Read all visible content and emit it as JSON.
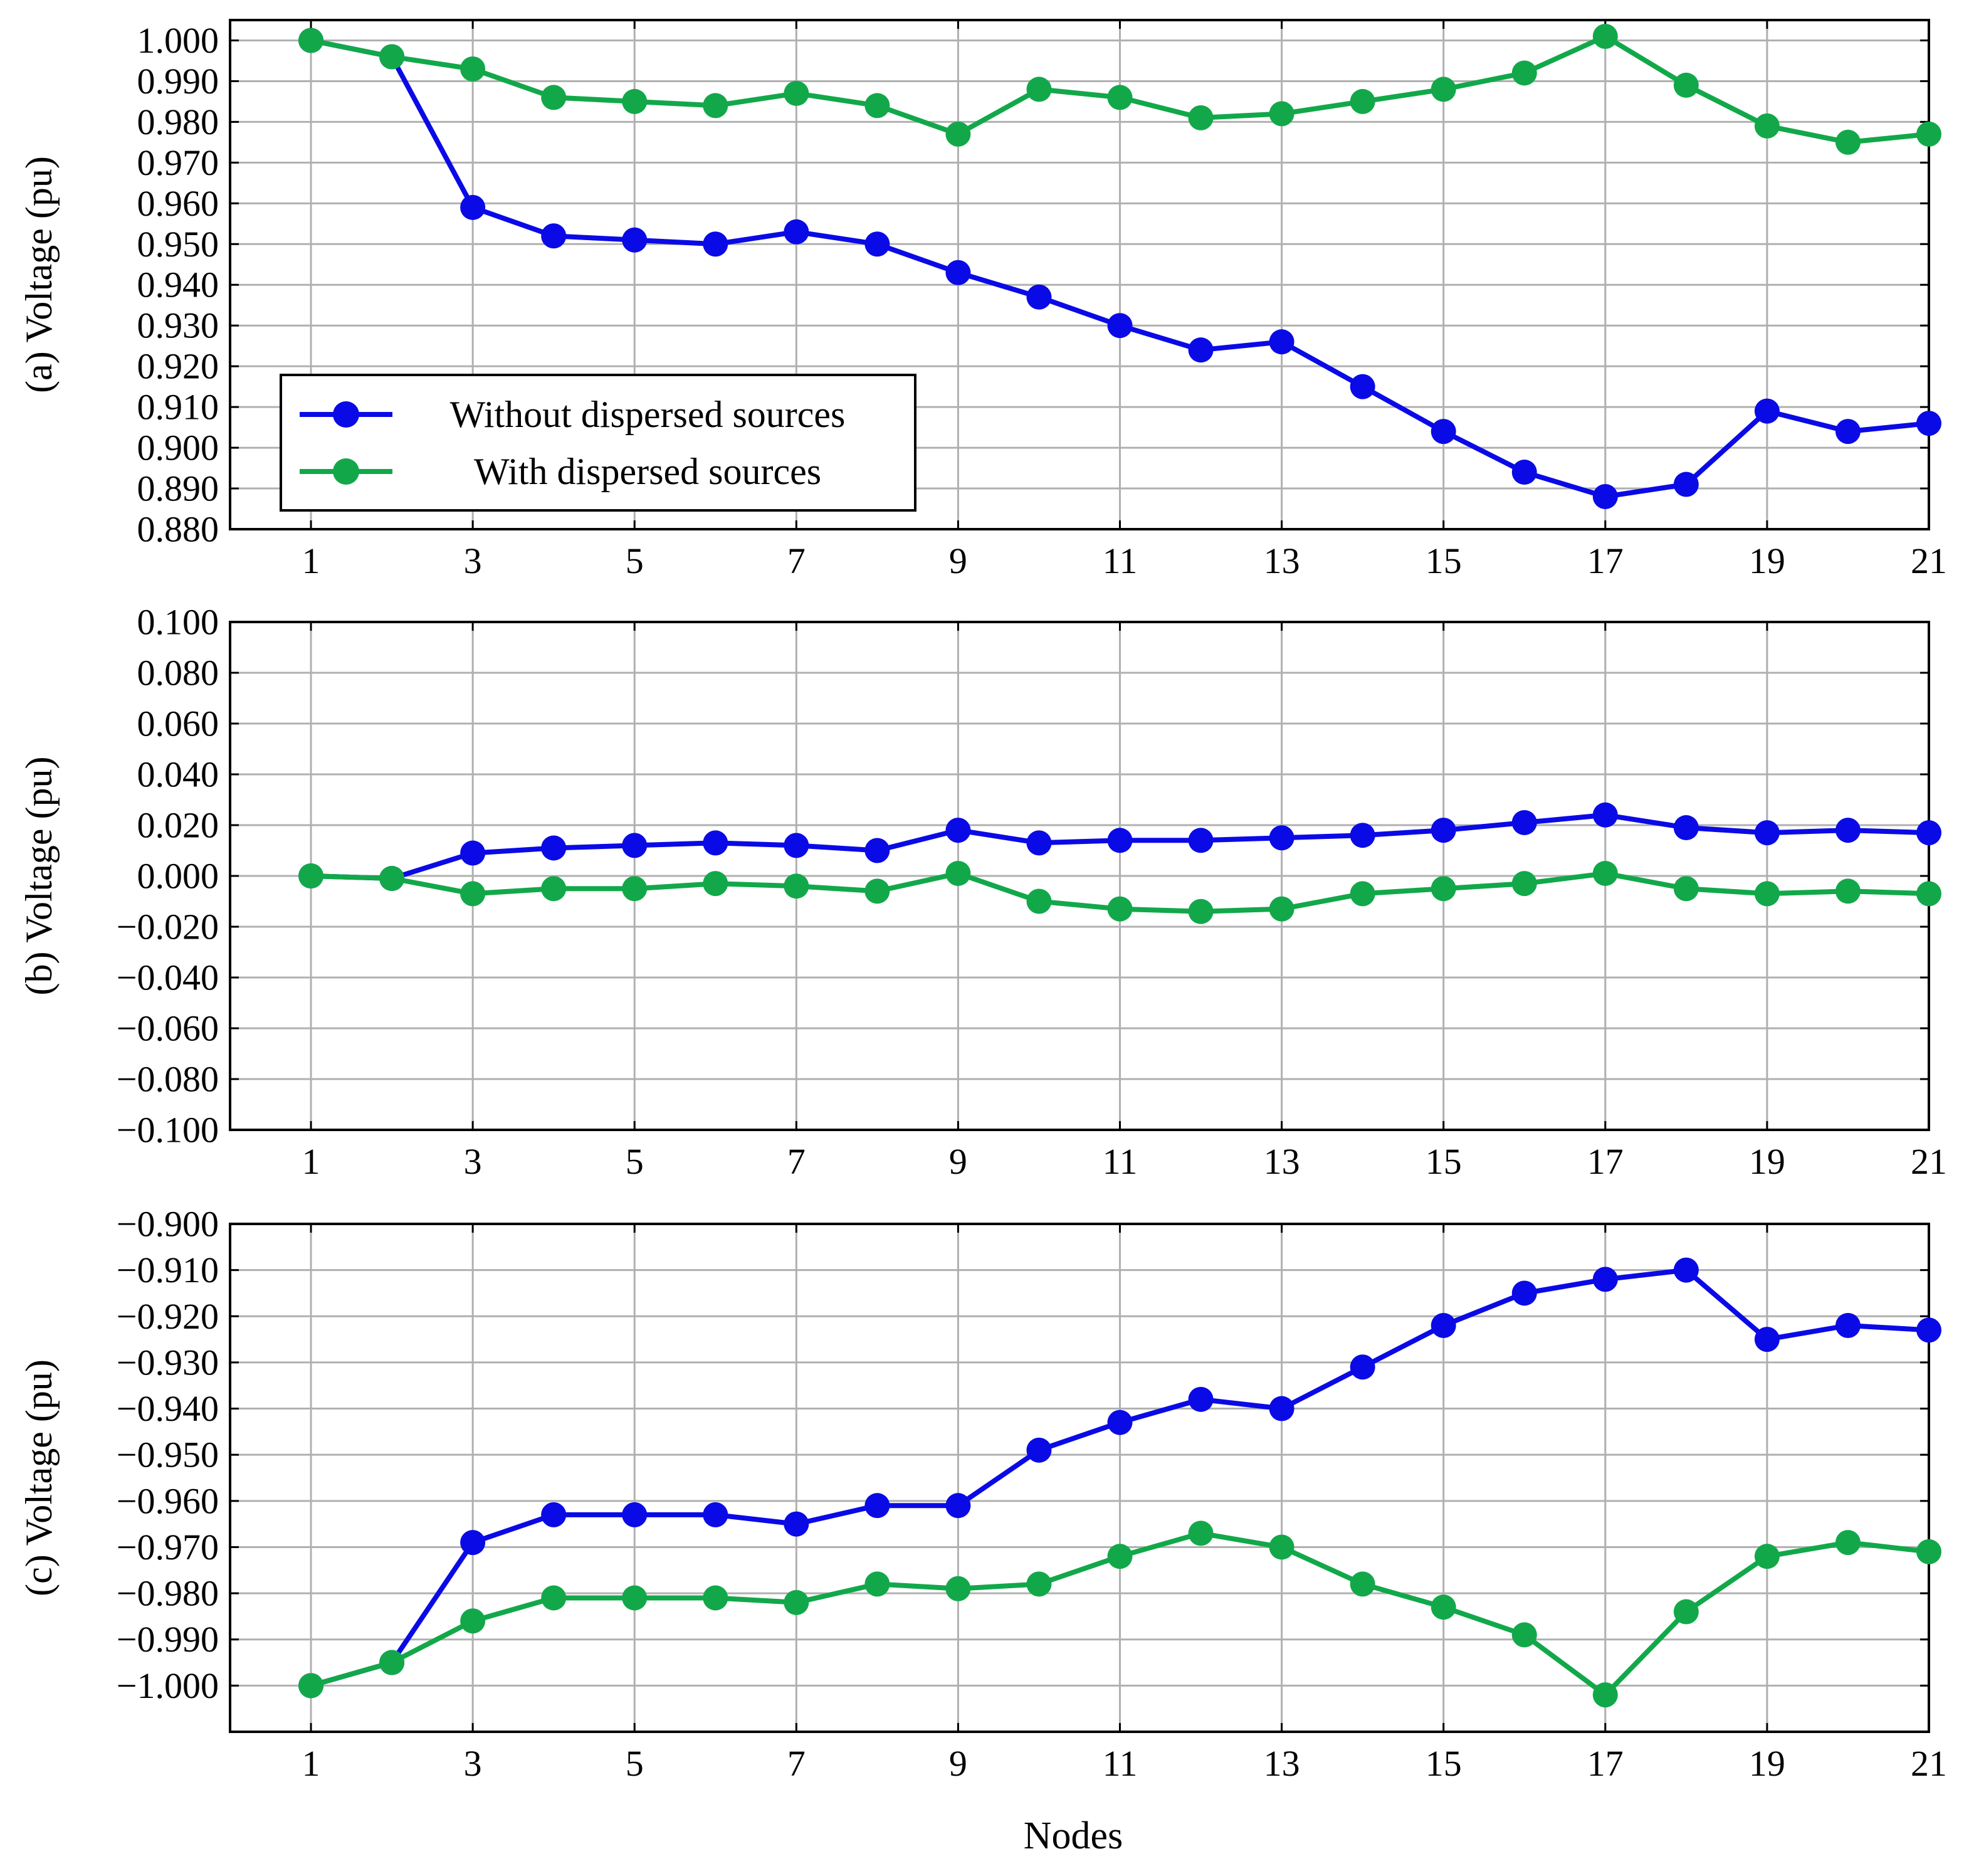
{
  "figure": {
    "xlabel": "Nodes"
  },
  "legend": {
    "entries": [
      "Without dispersed sources",
      "With dispersed sources"
    ],
    "placement": "lower-left of panel (a)"
  },
  "colors": {
    "without": "#0a0ae6",
    "with": "#12a84a",
    "grid": "#b0b0b0"
  },
  "chart_data": [
    {
      "type": "line",
      "panel": "a",
      "ylabel": "(a) Voltage (pu)",
      "xlabel": "",
      "x": [
        1,
        2,
        3,
        4,
        5,
        6,
        7,
        8,
        9,
        10,
        11,
        12,
        13,
        14,
        15,
        16,
        17,
        18,
        19,
        20,
        21
      ],
      "xlim": [
        0,
        21
      ],
      "xticks": [
        1,
        3,
        5,
        7,
        9,
        11,
        13,
        15,
        17,
        19,
        21
      ],
      "xtick_labels": [
        "1",
        "3",
        "5",
        "7",
        "9",
        "11",
        "13",
        "15",
        "17",
        "19",
        "21"
      ],
      "ylim": [
        0.88,
        1.005
      ],
      "yticks": [
        0.88,
        0.89,
        0.9,
        0.91,
        0.92,
        0.93,
        0.94,
        0.95,
        0.96,
        0.97,
        0.98,
        0.99,
        1.0
      ],
      "ytick_labels": [
        "0.880",
        "0.890",
        "0.900",
        "0.910",
        "0.920",
        "0.930",
        "0.940",
        "0.950",
        "0.960",
        "0.970",
        "0.980",
        "0.990",
        "1.000"
      ],
      "grid": true,
      "legend": true,
      "series": [
        {
          "name": "Without dispersed sources",
          "values": [
            1.0,
            0.996,
            0.959,
            0.952,
            0.951,
            0.95,
            0.953,
            0.95,
            0.943,
            0.937,
            0.93,
            0.924,
            0.926,
            0.915,
            0.904,
            0.894,
            0.888,
            0.891,
            0.909,
            0.904,
            0.906
          ]
        },
        {
          "name": "With dispersed sources",
          "values": [
            1.0,
            0.996,
            0.993,
            0.986,
            0.985,
            0.984,
            0.987,
            0.984,
            0.977,
            0.988,
            0.986,
            0.981,
            0.982,
            0.985,
            0.988,
            0.992,
            1.001,
            0.989,
            0.979,
            0.975,
            0.977
          ]
        }
      ]
    },
    {
      "type": "line",
      "panel": "b",
      "ylabel": "(b) Voltage (pu)",
      "xlabel": "",
      "x": [
        1,
        2,
        3,
        4,
        5,
        6,
        7,
        8,
        9,
        10,
        11,
        12,
        13,
        14,
        15,
        16,
        17,
        18,
        19,
        20,
        21
      ],
      "xlim": [
        0,
        21
      ],
      "xticks": [
        1,
        3,
        5,
        7,
        9,
        11,
        13,
        15,
        17,
        19,
        21
      ],
      "xtick_labels": [
        "1",
        "3",
        "5",
        "7",
        "9",
        "11",
        "13",
        "15",
        "17",
        "19",
        "21"
      ],
      "ylim": [
        -0.1,
        0.1
      ],
      "yticks": [
        -0.1,
        -0.08,
        -0.06,
        -0.04,
        -0.02,
        0,
        0.02,
        0.04,
        0.06,
        0.08,
        0.1
      ],
      "ytick_labels": [
        "−0.100",
        "−0.080",
        "−0.060",
        "−0.040",
        "−0.020",
        "0.000",
        "0.020",
        "0.040",
        "0.060",
        "0.080",
        "0.100"
      ],
      "grid": true,
      "legend": false,
      "series": [
        {
          "name": "Without dispersed sources",
          "values": [
            0.0,
            -0.001,
            0.009,
            0.011,
            0.012,
            0.013,
            0.012,
            0.01,
            0.018,
            0.013,
            0.014,
            0.014,
            0.015,
            0.016,
            0.018,
            0.021,
            0.024,
            0.019,
            0.017,
            0.018,
            0.017
          ]
        },
        {
          "name": "With dispersed sources",
          "values": [
            0.0,
            -0.001,
            -0.007,
            -0.005,
            -0.005,
            -0.003,
            -0.004,
            -0.006,
            0.001,
            -0.01,
            -0.013,
            -0.014,
            -0.013,
            -0.007,
            -0.005,
            -0.003,
            0.001,
            -0.005,
            -0.007,
            -0.006,
            -0.007
          ]
        }
      ]
    },
    {
      "type": "line",
      "panel": "c",
      "ylabel": "(c) Voltage (pu)",
      "xlabel": "Nodes",
      "x": [
        1,
        2,
        3,
        4,
        5,
        6,
        7,
        8,
        9,
        10,
        11,
        12,
        13,
        14,
        15,
        16,
        17,
        18,
        19,
        20,
        21
      ],
      "xlim": [
        0,
        21
      ],
      "xticks": [
        1,
        3,
        5,
        7,
        9,
        11,
        13,
        15,
        17,
        19,
        21
      ],
      "xtick_labels": [
        "1",
        "3",
        "5",
        "7",
        "9",
        "11",
        "13",
        "15",
        "17",
        "19",
        "21"
      ],
      "ylim": [
        -1.01,
        -0.9
      ],
      "yticks": [
        -1.0,
        -0.99,
        -0.98,
        -0.97,
        -0.96,
        -0.95,
        -0.94,
        -0.93,
        -0.92,
        -0.91,
        -0.9
      ],
      "ytick_labels": [
        "−1.000",
        "−0.990",
        "−0.980",
        "−0.970",
        "−0.960",
        "−0.950",
        "−0.940",
        "−0.930",
        "−0.920",
        "−0.910",
        "−0.900"
      ],
      "grid": true,
      "legend": false,
      "series": [
        {
          "name": "Without dispersed sources",
          "values": [
            -1.0,
            -0.995,
            -0.969,
            -0.963,
            -0.963,
            -0.963,
            -0.965,
            -0.961,
            -0.961,
            -0.949,
            -0.943,
            -0.938,
            -0.94,
            -0.931,
            -0.922,
            -0.915,
            -0.912,
            -0.91,
            -0.925,
            -0.922,
            -0.923
          ]
        },
        {
          "name": "With dispersed sources",
          "values": [
            -1.0,
            -0.995,
            -0.986,
            -0.981,
            -0.981,
            -0.981,
            -0.982,
            -0.978,
            -0.979,
            -0.978,
            -0.972,
            -0.967,
            -0.97,
            -0.978,
            -0.983,
            -0.989,
            -1.002,
            -0.984,
            -0.972,
            -0.969,
            -0.971
          ]
        }
      ]
    }
  ]
}
